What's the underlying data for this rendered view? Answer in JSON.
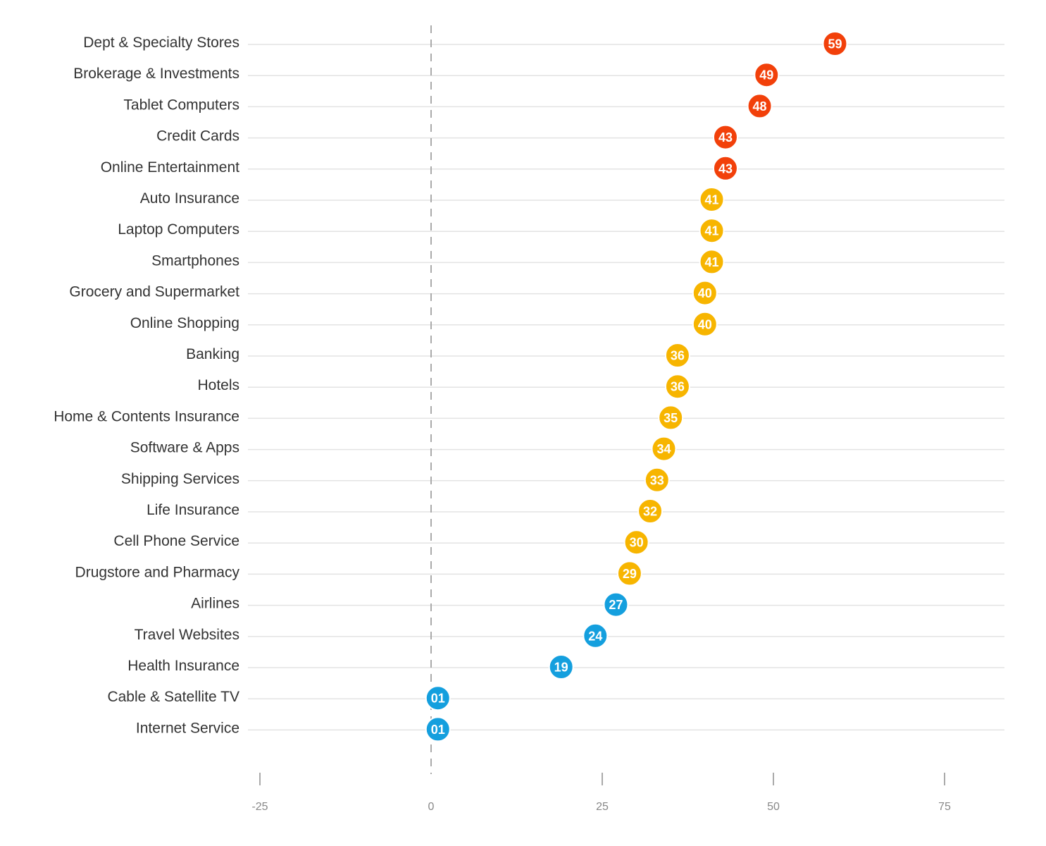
{
  "chart_data": {
    "type": "scatter",
    "categories": [
      "Dept & Specialty Stores",
      "Brokerage & Investments",
      "Tablet Computers",
      "Credit Cards",
      "Online Entertainment",
      "Auto Insurance",
      "Laptop Computers",
      "Smartphones",
      "Grocery and Supermarket",
      "Online Shopping",
      "Banking",
      "Hotels",
      "Home & Contents Insurance",
      "Software & Apps",
      "Shipping Services",
      "Life Insurance",
      "Cell Phone Service",
      "Drugstore and Pharmacy",
      "Airlines",
      "Travel Websites",
      "Health Insurance",
      "Cable & Satellite TV",
      "Internet Service"
    ],
    "values": [
      59,
      49,
      48,
      43,
      43,
      41,
      41,
      41,
      40,
      40,
      36,
      36,
      35,
      34,
      33,
      32,
      30,
      29,
      27,
      24,
      19,
      1,
      1
    ],
    "point_labels": [
      "59",
      "49",
      "48",
      "43",
      "43",
      "41",
      "41",
      "41",
      "40",
      "40",
      "36",
      "36",
      "35",
      "34",
      "33",
      "32",
      "30",
      "29",
      "27",
      "24",
      "19",
      "01",
      "01"
    ],
    "xlim": [
      -25,
      85
    ],
    "x_ticks": [
      -25,
      0,
      25,
      50,
      75
    ],
    "x_tick_labels": [
      "-25",
      "0",
      "25",
      "50",
      "75"
    ],
    "reference_line": 0,
    "grid": "horizontal",
    "colors": {
      "high": "#f2400a",
      "mid": "#f7b500",
      "low": "#149fde"
    },
    "color_bands": [
      {
        "min": 43,
        "color": "high"
      },
      {
        "min": 28,
        "color": "mid"
      },
      {
        "min": -100,
        "color": "low"
      }
    ]
  }
}
